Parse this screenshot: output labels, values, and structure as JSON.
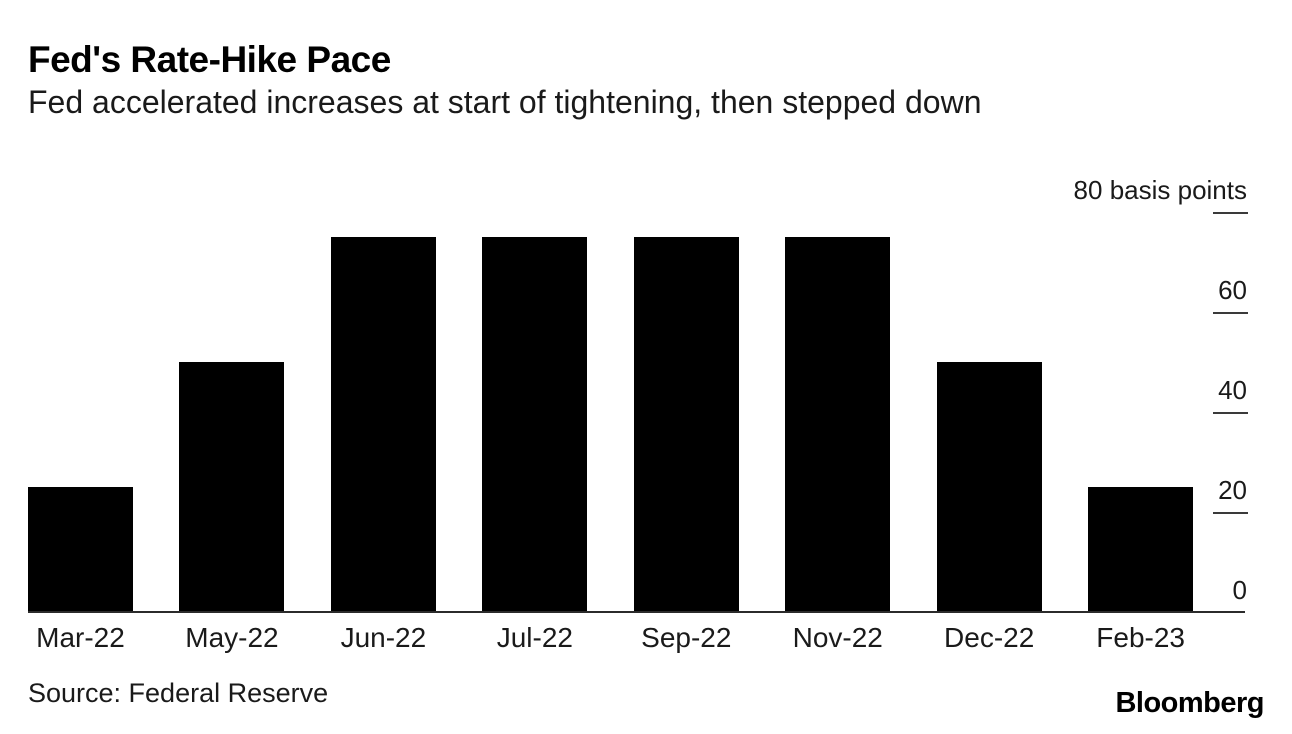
{
  "header": {
    "title": "Fed's Rate-Hike Pace",
    "subtitle": "Fed accelerated increases at start of tightening, then stepped down"
  },
  "footer": {
    "source": "Source: Federal Reserve",
    "brand": "Bloomberg"
  },
  "chart_data": {
    "type": "bar",
    "title": "Fed's Rate-Hike Pace",
    "subtitle": "Fed accelerated increases at start of tightening, then stepped down",
    "categories": [
      "Mar-22",
      "May-22",
      "Jun-22",
      "Jul-22",
      "Sep-22",
      "Nov-22",
      "Dec-22",
      "Feb-23"
    ],
    "values": [
      25,
      50,
      75,
      75,
      75,
      75,
      50,
      25
    ],
    "unit": "basis points",
    "ylabel": "basis points",
    "ylim": [
      0,
      80
    ],
    "yticks": [
      80,
      60,
      40,
      20,
      0
    ],
    "ytick_top_label": "80 basis points",
    "axis_side": "right",
    "grid": false,
    "legend": false,
    "bar_color": "#000000",
    "source": "Source: Federal Reserve",
    "brand": "Bloomberg"
  }
}
